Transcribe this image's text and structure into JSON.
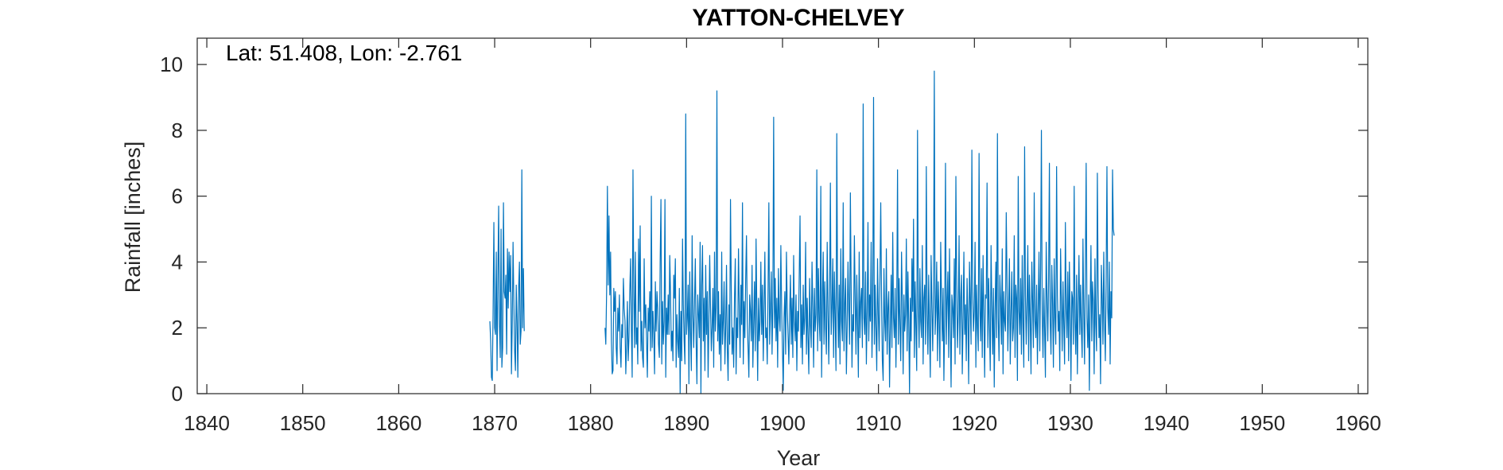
{
  "chart_data": {
    "type": "line",
    "title": "YATTON-CHELVEY",
    "annotation": "Lat: 51.408, Lon: -2.761",
    "xlabel": "Year",
    "ylabel": "Rainfall [inches]",
    "xlim": [
      1839,
      1961
    ],
    "ylim": [
      0,
      10.8
    ],
    "xticks": [
      1840,
      1850,
      1860,
      1870,
      1880,
      1890,
      1900,
      1910,
      1920,
      1930,
      1940,
      1950,
      1960
    ],
    "yticks": [
      0,
      2,
      4,
      6,
      8,
      10
    ],
    "grid": false,
    "series_color": "#0072BD",
    "series": [
      {
        "segments": [
          {
            "x_start": 1869.5,
            "step": 0.0833,
            "values": [
              2.2,
              1.6,
              0.5,
              0.4,
              2.4,
              5.2,
              2.0,
              1.8,
              4.3,
              0.7,
              3.5,
              5.7,
              2.1,
              1.1,
              5.0,
              0.8,
              1.4,
              5.8,
              3.1,
              2.9,
              3.6,
              1.2,
              4.4,
              2.6,
              4.3,
              3.1,
              4.2,
              0.6,
              2.1,
              4.6,
              2.8,
              1.3,
              0.7,
              3.3,
              2.2,
              0.5,
              3.2,
              4.0,
              1.5,
              1.9,
              6.8,
              2.0,
              3.8,
              1.9
            ]
          },
          {
            "x_start": 1881.5,
            "step": 0.0833,
            "values": [
              2.0,
              1.5,
              3.1,
              6.3,
              3.3,
              5.4,
              3.0,
              4.3,
              1.6,
              0.6,
              0.7,
              3.2,
              2.5,
              3.1,
              1.4,
              0.9,
              2.6,
              1.9,
              3.0,
              1.4,
              0.8,
              2.1,
              1.7,
              3.5,
              2.6,
              2.2,
              0.6,
              1.5,
              2.8,
              1.0,
              1.7,
              3.1,
              4.1,
              2.0,
              0.5,
              6.8,
              3.1,
              1.4,
              4.3,
              1.5,
              2.0,
              0.9,
              4.7,
              2.5,
              5.1,
              1.3,
              2.2,
              1.1,
              0.8,
              4.1,
              2.0,
              2.7,
              1.6,
              0.5,
              2.6,
              1.9,
              3.1,
              1.3,
              6.0,
              1.4,
              2.5,
              1.8,
              0.6,
              3.4,
              1.9,
              3.1,
              2.6,
              1.5,
              1.1,
              4.0,
              5.9,
              0.9,
              2.8,
              1.5,
              2.2,
              5.9,
              0.5,
              2.6,
              1.8,
              3.0,
              1.8,
              4.2,
              3.0,
              1.3,
              1.9,
              1.0,
              3.6,
              2.9,
              4.1,
              0.8,
              2.4,
              1.6,
              1.1,
              3.2,
              0.0,
              2.5,
              1.0,
              4.7,
              2.7,
              1.6,
              0.9,
              8.5,
              1.8,
              2.3,
              3.3,
              0.3,
              3.7,
              1.9,
              0.7,
              4.8,
              2.4,
              1.4,
              2.8,
              4.1,
              1.6,
              0.3,
              3.0,
              2.4,
              1.7,
              4.6,
              0.0,
              3.3,
              4.5,
              1.6,
              2.9,
              0.7,
              3.9,
              1.8,
              3.1,
              0.5,
              2.2,
              4.2,
              2.6,
              1.3,
              2.0,
              3.2,
              0.8,
              4.3,
              1.9,
              2.6,
              9.2,
              1.6,
              3.1,
              1.2,
              2.4,
              0.7,
              4.3,
              1.5,
              2.2,
              3.4,
              0.9,
              2.0,
              3.9,
              1.4,
              0.4,
              2.7,
              1.5,
              5.9,
              3.1,
              1.2,
              2.0,
              0.8,
              2.9,
              4.1,
              0.6,
              2.3,
              1.7,
              4.4,
              2.6,
              1.1,
              3.3,
              2.1,
              5.8,
              0.9,
              2.8,
              1.7,
              3.5,
              4.8,
              2.2,
              1.4,
              0.5,
              3.0,
              2.5,
              1.6,
              3.9,
              0.8,
              2.1,
              3.4,
              1.3,
              4.7,
              2.4,
              0.4,
              2.9,
              1.6,
              2.2,
              4.0,
              1.8,
              3.3,
              1.0,
              2.6,
              4.3,
              1.7,
              2.0,
              0.9,
              3.1,
              5.8,
              1.5,
              2.5,
              3.7,
              1.2,
              2.8,
              8.4,
              2.0,
              3.5,
              1.6,
              2.9,
              0.8,
              3.8,
              2.3,
              1.9,
              4.5,
              2.6,
              1.4,
              0.1,
              2.3,
              3.1,
              1.2,
              4.3,
              2.6,
              1.8,
              0.9,
              2.4,
              3.6,
              1.5,
              2.9,
              1.1,
              4.2,
              2.2,
              1.6,
              3.0,
              0.7,
              2.5,
              1.9,
              3.6,
              5.4,
              1.4,
              2.7,
              0.9,
              3.3,
              1.8,
              2.3,
              4.6,
              1.2,
              2.9,
              1.7,
              0.6,
              3.5,
              2.1,
              1.4,
              4.0,
              2.6,
              0.8,
              3.2,
              1.9,
              2.4,
              6.8,
              1.3,
              3.8,
              2.2,
              1.6,
              6.3,
              0.5,
              2.8,
              4.3,
              1.5,
              3.4,
              2.0,
              1.2,
              4.6,
              2.5,
              0.9,
              3.0,
              6.4,
              1.8,
              2.6,
              4.1,
              1.1,
              3.7,
              2.3,
              0.7,
              7.9,
              2.9,
              1.4,
              3.3,
              0.9,
              4.4,
              2.2,
              1.6,
              5.8,
              1.3,
              2.7,
              3.5,
              0.6,
              2.0,
              4.0,
              2.6,
              1.5,
              6.1,
              3.1,
              0.8,
              2.4,
              1.9,
              4.8,
              2.9,
              1.2,
              3.6,
              2.1,
              0.5,
              4.3,
              1.7,
              2.8,
              3.2,
              1.4,
              8.8,
              2.3,
              1.8,
              3.7,
              0.9,
              2.5,
              5.2,
              1.6,
              3.0,
              2.2,
              4.6,
              1.1,
              2.7,
              9.0,
              1.5,
              3.3,
              2.0,
              0.7,
              4.1,
              2.4,
              1.3,
              3.5,
              5.8,
              2.9,
              1.0,
              0.4,
              3.8,
              2.2,
              1.6,
              4.4,
              1.2,
              2.6,
              3.1,
              0.2,
              2.0,
              3.6,
              1.4,
              4.9,
              2.3,
              1.7,
              3.2,
              0.8,
              2.7,
              6.8,
              1.5,
              3.5,
              2.1,
              1.0,
              4.3,
              2.8,
              0.6,
              3.0,
              1.9,
              2.4,
              4.7,
              1.3,
              3.7,
              2.2,
              0.0,
              2.9,
              1.6,
              4.1,
              2.5,
              5.3,
              1.1,
              3.4,
              2.0,
              0.7,
              8.0,
              2.6,
              1.4,
              3.8,
              2.2,
              1.7,
              4.5,
              0.9,
              2.9,
              3.3,
              1.5,
              6.9,
              2.4,
              1.2,
              3.6,
              2.0,
              0.5,
              4.2,
              2.7,
              1.3,
              3.1,
              9.8,
              1.8,
              2.5,
              4.0,
              1.0,
              3.4,
              2.2,
              0.8,
              4.6,
              2.9,
              1.6,
              3.2,
              0.4,
              2.3,
              7.0,
              1.5,
              2.8,
              3.7,
              1.1,
              4.4,
              2.1,
              0.2,
              3.0,
              2.6,
              1.7,
              4.1,
              0.9,
              6.6,
              3.3,
              1.4,
              2.4,
              4.8,
              1.2,
              2.9,
              3.6,
              0.6,
              2.2,
              4.3,
              1.8,
              2.7,
              1.0,
              3.5,
              2.3,
              0.3,
              4.0,
              2.8,
              1.5,
              7.4,
              3.1,
              1.9,
              2.5,
              4.6,
              0.8,
              3.3,
              2.0,
              1.3,
              7.3,
              2.6,
              1.6,
              3.8,
              1.1,
              4.2,
              2.4,
              0.5,
              3.0,
              2.9,
              6.4,
              1.4,
              3.5,
              2.1,
              0.7,
              4.5,
              2.7,
              1.2,
              3.2,
              0.2,
              2.5,
              4.0,
              1.7,
              7.9,
              2.3,
              1.0,
              3.6,
              2.8,
              1.5,
              4.4,
              0.6,
              3.1,
              2.2,
              1.9,
              5.5,
              3.4,
              1.3,
              2.6,
              4.1,
              0.9,
              2.4,
              3.7,
              1.6,
              2.0,
              4.8,
              1.1,
              3.3,
              2.9,
              0.4,
              6.6,
              2.5,
              1.8,
              3.5,
              1.2,
              4.2,
              2.1,
              0.8,
              7.5,
              3.0,
              1.5,
              2.7,
              4.5,
              1.0,
              3.6,
              2.3,
              0.6,
              4.0,
              2.8,
              1.4,
              6.1,
              2.2,
              1.7,
              3.3,
              0.9,
              2.6,
              4.3,
              1.3,
              3.8,
              8.0,
              2.4,
              1.1,
              3.2,
              2.0,
              0.5,
              4.6,
              2.9,
              1.6,
              3.5,
              7.0,
              2.2,
              1.2,
              3.9,
              2.7,
              0.8,
              4.1,
              2.3,
              1.5,
              6.9,
              3.0,
              1.9,
              2.5,
              0.7,
              4.4,
              2.8,
              1.3,
              3.4,
              2.1,
              0.9,
              5.2,
              2.6,
              1.7,
              3.7,
              1.0,
              4.0,
              2.4,
              0.4,
              3.1,
              2.9,
              1.5,
              6.3,
              2.2,
              1.2,
              3.6,
              0.6,
              2.7,
              4.2,
              1.8,
              3.3,
              2.0,
              1.1,
              4.7,
              2.5,
              0.9,
              3.8,
              7.0,
              2.3,
              1.4,
              3.0,
              0.1,
              2.6,
              4.5,
              1.6,
              3.4,
              2.8,
              0.6,
              4.1,
              2.1,
              1.3,
              6.7,
              3.2,
              1.7,
              2.4,
              0.3,
              3.9,
              2.9,
              1.5,
              4.3,
              2.2,
              1.0,
              3.5,
              6.9,
              2.6,
              1.8,
              4.0,
              0.9,
              3.1,
              2.3,
              6.8,
              5.0,
              4.8
            ]
          }
        ]
      }
    ]
  }
}
